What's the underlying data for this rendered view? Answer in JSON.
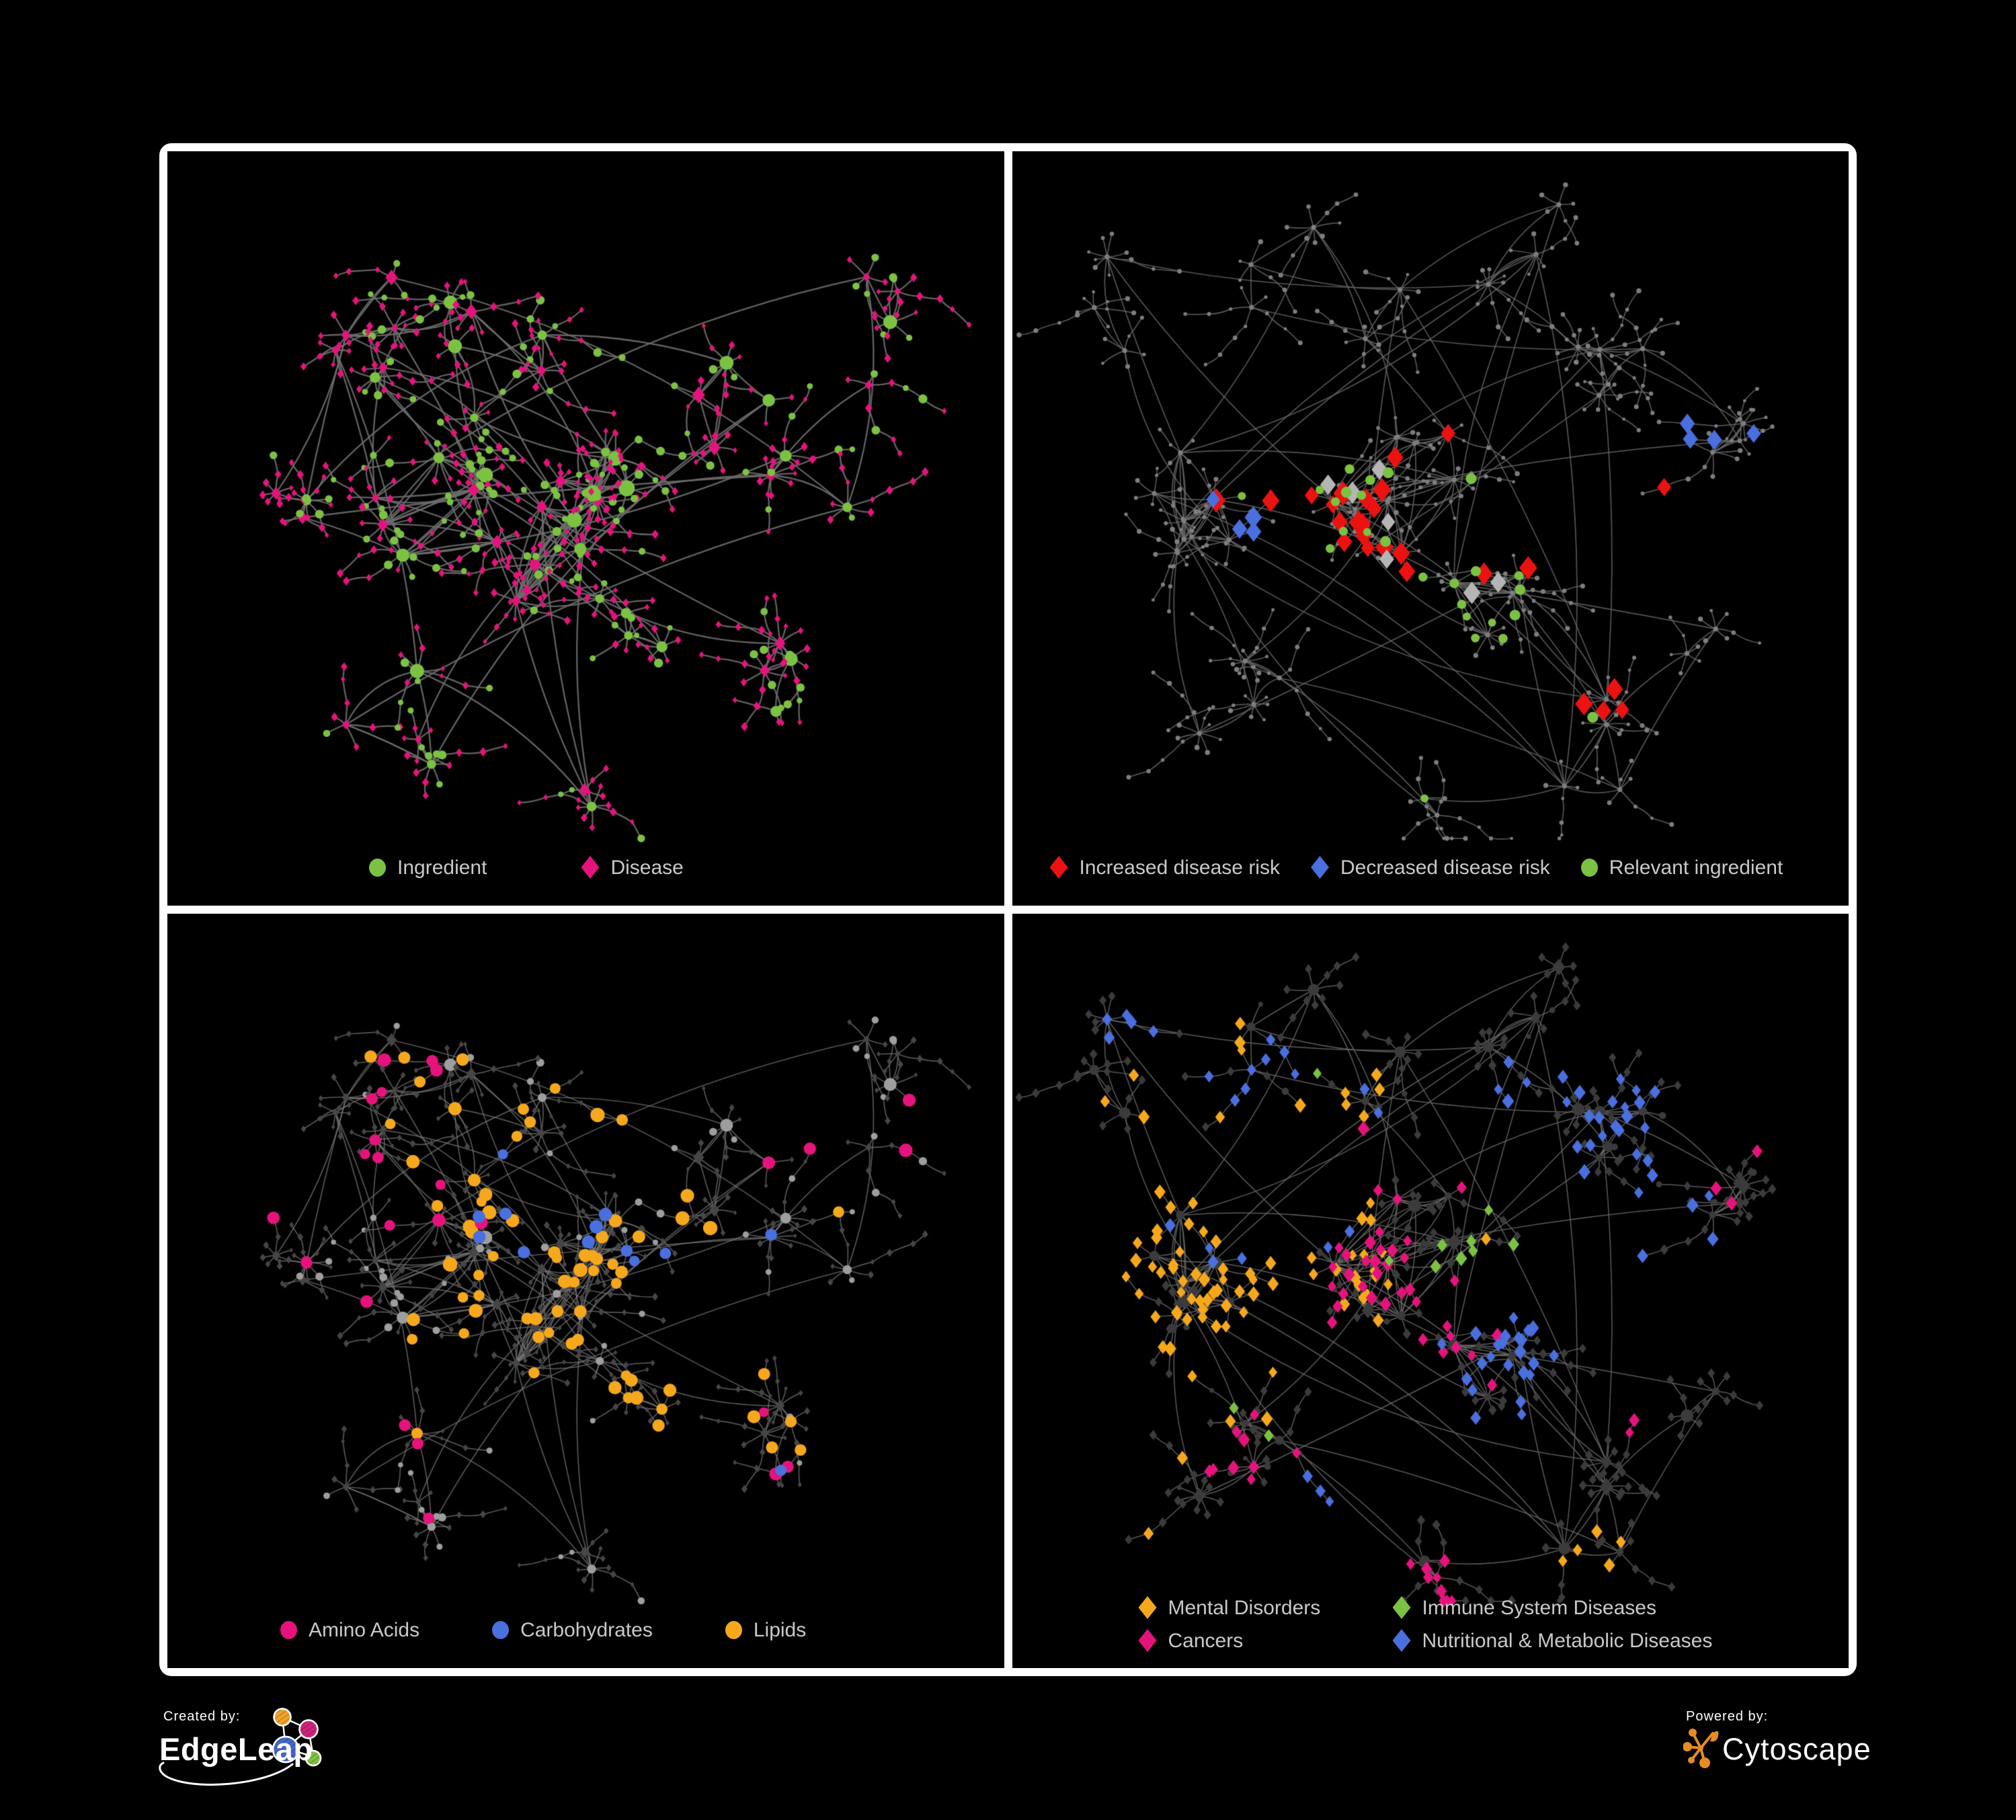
{
  "page": {
    "background": "#000000",
    "frame_color": "#FFFFFF",
    "panel_background": "#000000",
    "legend_text_color": "#C9C9C9"
  },
  "panels": [
    {
      "id": "ingredient-disease-network",
      "position": "top-left",
      "legend": [
        {
          "label": "Ingredient",
          "shape": "circle",
          "color": "#7CC242"
        },
        {
          "label": "Disease",
          "shape": "diamond",
          "color": "#E6137D"
        }
      ],
      "network": {
        "net": "A",
        "styleSeed": 21,
        "mode": "shapes",
        "circleColor": "#7CC242",
        "diamondColor": "#E6137D",
        "edgeColor": "#6E6E6E",
        "edgeWidth": 2.3,
        "edgeAlpha": 0.9,
        "circleScale": 1.25,
        "diamondScale": 1.0
      }
    },
    {
      "id": "disease-risk-network",
      "position": "top-right",
      "legend": [
        {
          "label": "Increased disease risk",
          "shape": "diamond",
          "color": "#EC1212"
        },
        {
          "label": "Decreased disease risk",
          "shape": "diamond",
          "color": "#4A6FDE"
        },
        {
          "label": "Relevant ingredient",
          "shape": "circle",
          "color": "#7CC242"
        }
      ],
      "network": {
        "net": "B",
        "styleSeed": 22,
        "mode": "dots",
        "baseColor": "#7E7E7E",
        "baseRadius": 2.9,
        "edgeColor": "#6A6A6A",
        "edgeWidth": 1.7,
        "edgeAlpha": 0.8,
        "highlights": [
          {
            "shape": "diamond",
            "color": "#EC1212",
            "size": 12,
            "count": 26,
            "spots": [
              [
                0.44,
                0.5,
                0.14
              ],
              [
                0.3,
                0.5,
                0.08
              ],
              [
                0.62,
                0.5,
                0.06
              ],
              [
                0.72,
                0.7,
                0.05
              ],
              [
                0.4,
                0.32,
                0.04
              ],
              [
                0.78,
                0.44,
                0.03
              ]
            ]
          },
          {
            "shape": "diamond",
            "color": "#B5B5B5",
            "size": 11,
            "count": 7,
            "spots": [
              [
                0.38,
                0.47,
                0.12
              ],
              [
                0.6,
                0.58,
                0.06
              ],
              [
                0.33,
                0.6,
                0.04
              ]
            ]
          },
          {
            "shape": "diamond",
            "color": "#4A6FDE",
            "size": 11,
            "count": 8,
            "spots": [
              [
                0.31,
                0.48,
                0.05
              ],
              [
                0.83,
                0.37,
                0.03
              ]
            ]
          },
          {
            "shape": "circle",
            "color": "#7CC242",
            "size": 7,
            "count": 26,
            "spots": [
              [
                0.46,
                0.5,
                0.12
              ],
              [
                0.31,
                0.4,
                0.07
              ],
              [
                0.68,
                0.73,
                0.04
              ],
              [
                0.79,
                0.35,
                0.02
              ],
              [
                0.13,
                0.53,
                0.02
              ],
              [
                0.5,
                0.85,
                0.02
              ],
              [
                0.58,
                0.6,
                0.05
              ]
            ]
          }
        ]
      }
    },
    {
      "id": "compound-class-network",
      "position": "bottom-left",
      "legend": [
        {
          "label": "Amino Acids",
          "shape": "circle",
          "color": "#E6137D"
        },
        {
          "label": "Carbohydrates",
          "shape": "circle",
          "color": "#4A6FDE"
        },
        {
          "label": "Lipids",
          "shape": "circle",
          "color": "#F6A81D"
        }
      ],
      "network": {
        "net": "A",
        "styleSeed": 23,
        "mode": "shapes",
        "circleColor": "#9E9E9E",
        "diamondColor": "#464646",
        "edgeColor": "#7A7A7A",
        "edgeWidth": 1.7,
        "edgeAlpha": 0.7,
        "circleScale": 1.15,
        "diamondScale": 0.85,
        "highlights": [
          {
            "shape": "circle",
            "only": "circle",
            "color": "#F6A81D",
            "size": 9,
            "count": 72,
            "spots": [
              [
                0.5,
                0.42,
                0.07
              ],
              [
                0.42,
                0.22,
                0.09
              ],
              [
                0.44,
                0.52,
                0.06
              ],
              [
                0.36,
                0.6,
                0.05
              ],
              [
                0.66,
                0.62,
                0.07
              ],
              [
                0.56,
                0.63,
                0.04
              ],
              [
                0.27,
                0.08,
                0.03
              ],
              [
                0.43,
                0.1,
                0.03
              ],
              [
                0.66,
                0.38,
                0.04
              ],
              [
                0.35,
                0.67,
                0.04
              ],
              [
                0.78,
                0.42,
                0.03
              ]
            ]
          },
          {
            "shape": "circle",
            "only": "circle",
            "color": "#E6137D",
            "size": 8.5,
            "count": 26,
            "spots": [
              [
                0.18,
                0.24,
                0.05
              ],
              [
                0.29,
                0.33,
                0.05
              ],
              [
                0.25,
                0.53,
                0.04
              ],
              [
                0.12,
                0.55,
                0.03
              ],
              [
                0.3,
                0.84,
                0.06
              ],
              [
                0.47,
                0.74,
                0.04
              ],
              [
                0.68,
                0.67,
                0.05
              ],
              [
                0.73,
                0.8,
                0.06
              ],
              [
                0.79,
                0.29,
                0.03
              ],
              [
                0.94,
                0.3,
                0.03
              ],
              [
                0.66,
                0.04,
                0.03
              ],
              [
                0.24,
                0.67,
                0.04
              ]
            ]
          },
          {
            "shape": "circle",
            "only": "circle",
            "color": "#4A6FDE",
            "size": 8.5,
            "count": 13,
            "spots": [
              [
                0.5,
                0.46,
                0.06
              ],
              [
                0.41,
                0.31,
                0.04
              ],
              [
                0.28,
                0.07,
                0.03
              ],
              [
                0.05,
                0.27,
                0.02
              ],
              [
                0.68,
                0.62,
                0.03
              ],
              [
                0.41,
                0.4,
                0.04
              ]
            ]
          }
        ]
      }
    },
    {
      "id": "disease-class-network",
      "position": "bottom-right",
      "legend": [
        {
          "label": "Mental Disorders",
          "shape": "diamond",
          "color": "#F6A81D"
        },
        {
          "label": "Immune System Diseases",
          "shape": "diamond",
          "color": "#7CC242"
        },
        {
          "label": "Cancers",
          "shape": "diamond",
          "color": "#E6137D"
        },
        {
          "label": "Nutritional & Metabolic Diseases",
          "shape": "diamond",
          "color": "#4A6FDE"
        }
      ],
      "network": {
        "net": "B",
        "styleSeed": 24,
        "mode": "shapes",
        "circleColor": "#3B3B3B",
        "diamondColor": "#3B3B3B",
        "edgeColor": "#6A6A6A",
        "edgeWidth": 1.5,
        "edgeAlpha": 0.85,
        "circleScale": 1.0,
        "diamondScale": 1.15,
        "minDiamond": 5.5,
        "highlights": [
          {
            "shape": "diamond",
            "only": "diamond",
            "color": "#F6A81D",
            "size": 7.5,
            "count": 90,
            "spots": [
              [
                0.21,
                0.47,
                0.12
              ],
              [
                0.15,
                0.77,
                0.04
              ],
              [
                0.28,
                0.13,
                0.03
              ],
              [
                0.62,
                0.44,
                0.03
              ],
              [
                0.4,
                0.25,
                0.03
              ],
              [
                0.7,
                0.87,
                0.03
              ]
            ]
          },
          {
            "shape": "diamond",
            "only": "diamond",
            "color": "#E6137D",
            "size": 7.5,
            "count": 60,
            "spots": [
              [
                0.44,
                0.55,
                0.11
              ],
              [
                0.4,
                0.32,
                0.06
              ],
              [
                0.9,
                0.29,
                0.05
              ],
              [
                0.49,
                0.89,
                0.05
              ],
              [
                0.26,
                0.73,
                0.04
              ],
              [
                0.73,
                0.67,
                0.03
              ]
            ]
          },
          {
            "shape": "diamond",
            "only": "diamond",
            "color": "#4A6FDE",
            "size": 7.5,
            "count": 80,
            "spots": [
              [
                0.58,
                0.61,
                0.08
              ],
              [
                0.75,
                0.3,
                0.1
              ],
              [
                0.8,
                0.42,
                0.06
              ],
              [
                0.48,
                0.1,
                0.05
              ],
              [
                0.16,
                0.15,
                0.06
              ],
              [
                0.4,
                0.8,
                0.07
              ],
              [
                0.3,
                0.3,
                0.16
              ],
              [
                0.63,
                0.2,
                0.06
              ],
              [
                0.18,
                0.92,
                0.03
              ]
            ]
          },
          {
            "shape": "diamond",
            "only": "diamond",
            "color": "#7CC242",
            "size": 7.5,
            "count": 11,
            "spots": [
              [
                0.42,
                0.45,
                0.26
              ],
              [
                0.7,
                0.83,
                0.05
              ],
              [
                0.24,
                0.79,
                0.03
              ]
            ]
          }
        ]
      }
    }
  ],
  "networks": {
    "A": {
      "seed": 11,
      "leafMin": 3,
      "leafMax": 8,
      "chainProb": 0.35,
      "cross": 28,
      "hubCircle": 0.55,
      "leafCircle": 0.27,
      "clusters": [
        [
          0.33,
          0.5,
          0.1,
          8,
          2.2
        ],
        [
          0.47,
          0.52,
          0.1,
          8,
          2.2
        ],
        [
          0.51,
          0.42,
          0.05,
          6,
          1.5
        ],
        [
          0.42,
          0.28,
          0.12,
          5,
          0.6
        ],
        [
          0.3,
          0.2,
          0.1,
          4,
          0.4
        ],
        [
          0.56,
          0.63,
          0.05,
          3,
          0.8
        ],
        [
          0.68,
          0.33,
          0.1,
          4,
          0.4
        ],
        [
          0.8,
          0.38,
          0.1,
          4,
          0.4
        ],
        [
          0.72,
          0.72,
          0.09,
          4,
          0.5
        ],
        [
          0.3,
          0.75,
          0.09,
          4,
          0.5
        ],
        [
          0.5,
          0.88,
          0.04,
          2,
          0.5
        ],
        [
          0.15,
          0.45,
          0.07,
          3,
          0.4
        ],
        [
          0.85,
          0.2,
          0.06,
          3,
          0.4
        ],
        [
          0.2,
          0.3,
          0.06,
          3,
          0.4
        ]
      ]
    },
    "B": {
      "seed": 7,
      "leafMin": 3,
      "leafMax": 9,
      "chainProb": 0.32,
      "cross": 36,
      "hubCircle": 0.6,
      "leafCircle": 0.06,
      "clusters": [
        [
          0.22,
          0.46,
          0.08,
          8,
          2.5
        ],
        [
          0.45,
          0.44,
          0.1,
          10,
          2.5
        ],
        [
          0.57,
          0.6,
          0.06,
          5,
          1.8
        ],
        [
          0.38,
          0.18,
          0.12,
          5,
          0.5
        ],
        [
          0.6,
          0.12,
          0.08,
          3,
          0.4
        ],
        [
          0.75,
          0.3,
          0.1,
          5,
          0.6
        ],
        [
          0.88,
          0.42,
          0.07,
          3,
          0.4
        ],
        [
          0.7,
          0.78,
          0.08,
          4,
          0.6
        ],
        [
          0.48,
          0.86,
          0.05,
          2,
          0.6
        ],
        [
          0.25,
          0.72,
          0.08,
          4,
          0.5
        ],
        [
          0.13,
          0.2,
          0.07,
          3,
          0.4
        ],
        [
          0.85,
          0.65,
          0.05,
          2,
          0.4
        ]
      ]
    }
  },
  "footer": {
    "created_by": "Created by:",
    "edgeleap": "EdgeLeap",
    "powered_by": "Powered by:",
    "cytoscape": "Cytoscape",
    "cytoscape_color": "#E98B23",
    "edgeleap_node_colors": [
      "#F0A32A",
      "#CE2579",
      "#4467C8",
      "#7DC242"
    ]
  },
  "chart_data": [
    {
      "type": "network",
      "panel": "top-left",
      "categories": [
        "Ingredient",
        "Disease"
      ],
      "marker_shapes": [
        "circle",
        "diamond"
      ],
      "marker_colors": [
        "#7CC242",
        "#E6137D"
      ]
    },
    {
      "type": "network",
      "panel": "top-right",
      "categories": [
        "Increased disease risk",
        "Decreased disease risk",
        "Relevant ingredient"
      ],
      "marker_shapes": [
        "diamond",
        "diamond",
        "circle"
      ],
      "marker_colors": [
        "#EC1212",
        "#4A6FDE",
        "#7CC242"
      ]
    },
    {
      "type": "network",
      "panel": "bottom-left",
      "categories": [
        "Amino Acids",
        "Carbohydrates",
        "Lipids"
      ],
      "marker_shapes": [
        "circle",
        "circle",
        "circle"
      ],
      "marker_colors": [
        "#E6137D",
        "#4A6FDE",
        "#F6A81D"
      ]
    },
    {
      "type": "network",
      "panel": "bottom-right",
      "categories": [
        "Mental Disorders",
        "Immune System Diseases",
        "Cancers",
        "Nutritional & Metabolic Diseases"
      ],
      "marker_shapes": [
        "diamond",
        "diamond",
        "diamond",
        "diamond"
      ],
      "marker_colors": [
        "#F6A81D",
        "#7CC242",
        "#E6137D",
        "#4A6FDE"
      ]
    }
  ]
}
